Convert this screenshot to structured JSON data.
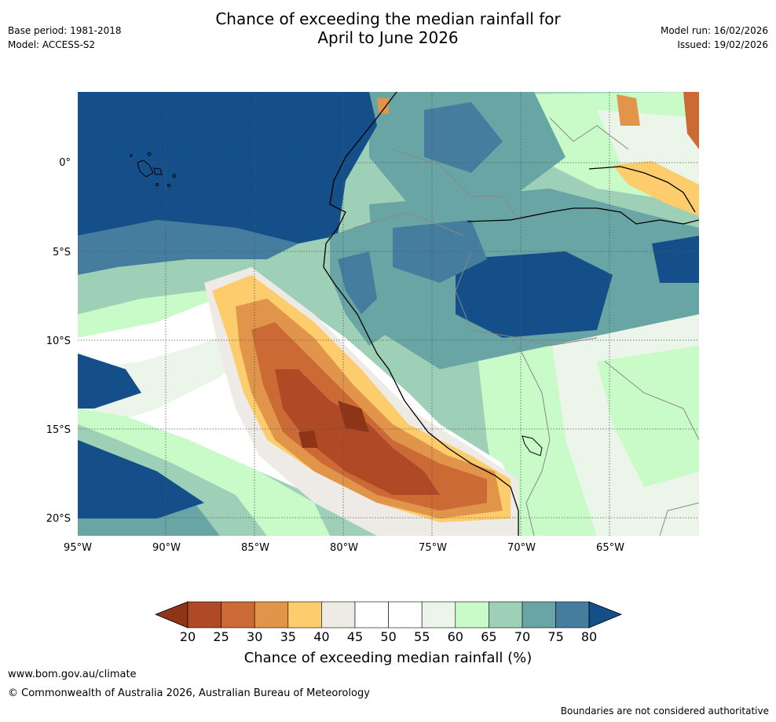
{
  "header": {
    "title_line1": "Chance of exceeding the median rainfall for",
    "title_line2": "April to June 2026",
    "base_period": "Base period: 1981-2018",
    "model": "Model: ACCESS-S2",
    "model_run": "Model run: 16/02/2026",
    "issued": "Issued: 19/02/2026"
  },
  "map": {
    "lon_labels": [
      "95°W",
      "90°W",
      "85°W",
      "80°W",
      "75°W",
      "70°W",
      "65°W"
    ],
    "lat_labels": [
      "0°",
      "5°S",
      "10°S",
      "15°S",
      "20°S"
    ],
    "colors": {
      "ocean_high": "#154f8a",
      "coast": "#000000",
      "border": "#888888"
    }
  },
  "colorbar": {
    "title": "Chance of exceeding median rainfall (%)",
    "ticks": [
      "20",
      "25",
      "30",
      "35",
      "40",
      "45",
      "50",
      "55",
      "60",
      "65",
      "70",
      "75",
      "80"
    ],
    "colors": [
      "#8e3518",
      "#b04a26",
      "#cc6a35",
      "#e0954a",
      "#fdcc6c",
      "#eeeae6",
      "#ffffff",
      "#ffffff",
      "#ebf5ea",
      "#c8fbc8",
      "#9ed0b8",
      "#6aa5a5",
      "#447d9d",
      "#154f8a"
    ]
  },
  "footer": {
    "url": "www.bom.gov.au/climate",
    "copyright": "© Commonwealth of Australia 2026, Australian Bureau of Meteorology",
    "note": "Boundaries are not considered authoritative"
  }
}
